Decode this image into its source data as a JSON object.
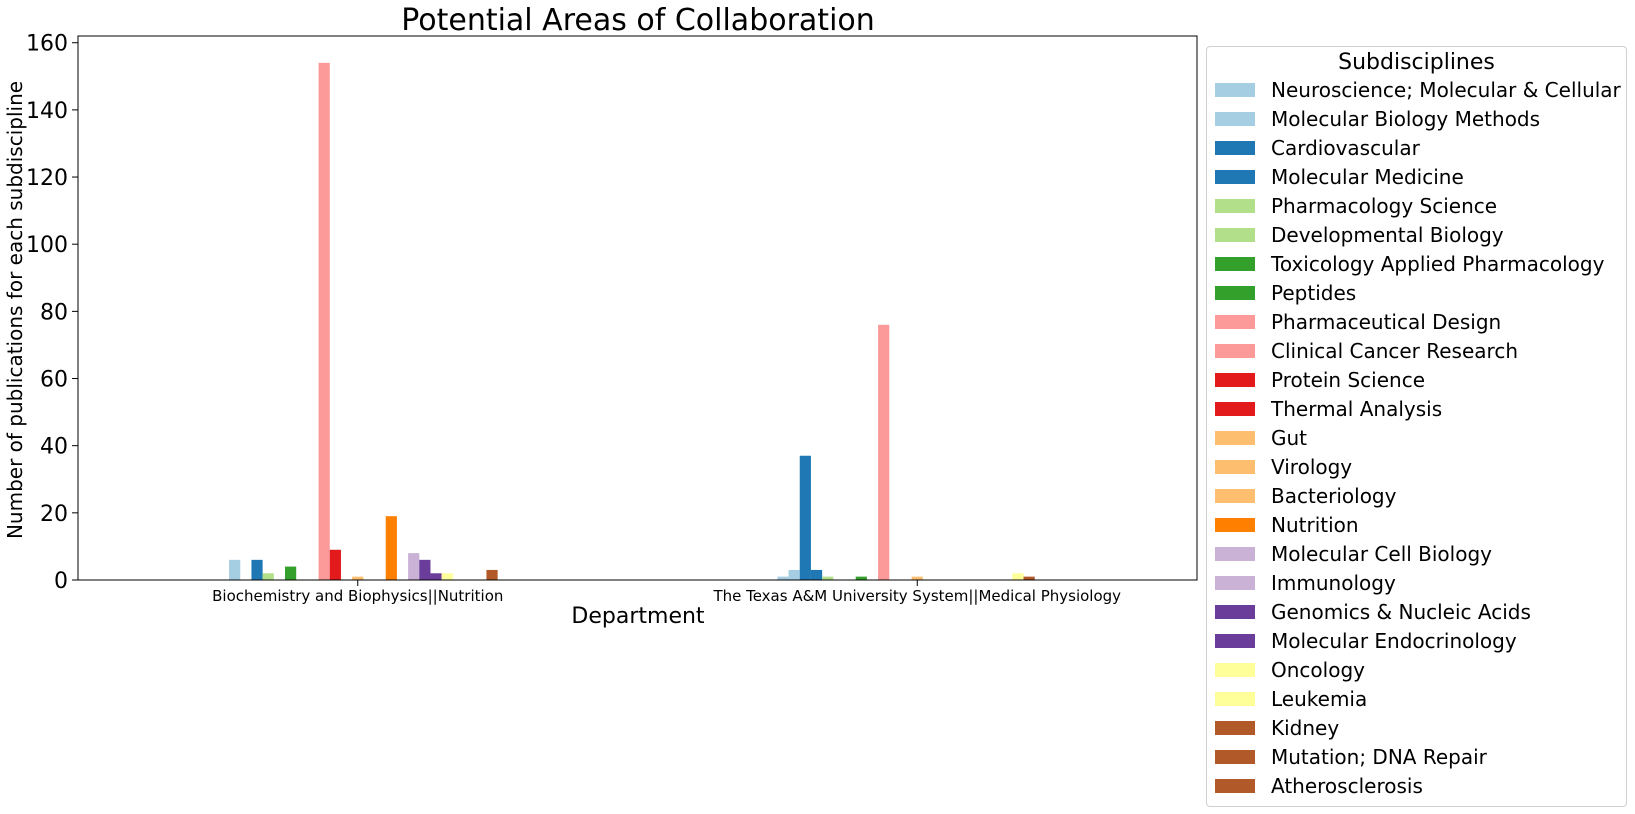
{
  "chart_data": {
    "type": "bar",
    "title": "Potential Areas of Collaboration",
    "xlabel": "Department",
    "ylabel": "Number of publications for each subdiscipline",
    "ylim": [
      0,
      162
    ],
    "yticks": [
      0,
      20,
      40,
      60,
      80,
      100,
      120,
      140,
      160
    ],
    "grid": false,
    "legend_title": "Subdisciplines",
    "legend_position": "right",
    "categories": [
      "Biochemistry and Biophysics||Nutrition",
      "The Texas A&M University System||Medical Physiology"
    ],
    "series": [
      {
        "name": "Neuroscience; Molecular & Cellular",
        "color": "#a6cee3",
        "values": [
          0,
          1
        ]
      },
      {
        "name": "Molecular Biology Methods",
        "color": "#a6cee3",
        "values": [
          6,
          3
        ]
      },
      {
        "name": "Cardiovascular",
        "color": "#1f78b4",
        "values": [
          0,
          37
        ]
      },
      {
        "name": "Molecular Medicine",
        "color": "#1f78b4",
        "values": [
          6,
          3
        ]
      },
      {
        "name": "Pharmacology Science",
        "color": "#b2df8a",
        "values": [
          2,
          1
        ]
      },
      {
        "name": "Developmental Biology",
        "color": "#b2df8a",
        "values": [
          0,
          0
        ]
      },
      {
        "name": "Toxicology Applied Pharmacology",
        "color": "#33a02c",
        "values": [
          4,
          0
        ]
      },
      {
        "name": "Peptides",
        "color": "#33a02c",
        "values": [
          0,
          1
        ]
      },
      {
        "name": "Pharmaceutical Design",
        "color": "#fb9a99",
        "values": [
          0,
          0
        ]
      },
      {
        "name": "Clinical Cancer Research",
        "color": "#fb9a99",
        "values": [
          154,
          76
        ]
      },
      {
        "name": "Protein Science",
        "color": "#e31a1c",
        "values": [
          9,
          0
        ]
      },
      {
        "name": "Thermal Analysis",
        "color": "#e31a1c",
        "values": [
          0,
          0
        ]
      },
      {
        "name": "Gut",
        "color": "#fdbf6f",
        "values": [
          1,
          1
        ]
      },
      {
        "name": "Virology",
        "color": "#fdbf6f",
        "values": [
          0,
          0
        ]
      },
      {
        "name": "Bacteriology",
        "color": "#fdbf6f",
        "values": [
          0,
          0
        ]
      },
      {
        "name": "Nutrition",
        "color": "#ff7f00",
        "values": [
          19,
          0
        ]
      },
      {
        "name": "Molecular Cell Biology",
        "color": "#cab2d6",
        "values": [
          0,
          0
        ]
      },
      {
        "name": "Immunology",
        "color": "#cab2d6",
        "values": [
          8,
          0
        ]
      },
      {
        "name": "Genomics & Nucleic Acids",
        "color": "#6a3d9a",
        "values": [
          6,
          0
        ]
      },
      {
        "name": "Molecular Endocrinology",
        "color": "#6a3d9a",
        "values": [
          2,
          0
        ]
      },
      {
        "name": "Oncology",
        "color": "#ffff99",
        "values": [
          2,
          0
        ]
      },
      {
        "name": "Leukemia",
        "color": "#ffff99",
        "values": [
          0,
          2
        ]
      },
      {
        "name": "Kidney",
        "color": "#b15928",
        "values": [
          0,
          1
        ]
      },
      {
        "name": "Mutation; DNA Repair",
        "color": "#b15928",
        "values": [
          0,
          0
        ]
      },
      {
        "name": "Atherosclerosis",
        "color": "#b15928",
        "values": [
          3,
          0
        ]
      }
    ]
  }
}
